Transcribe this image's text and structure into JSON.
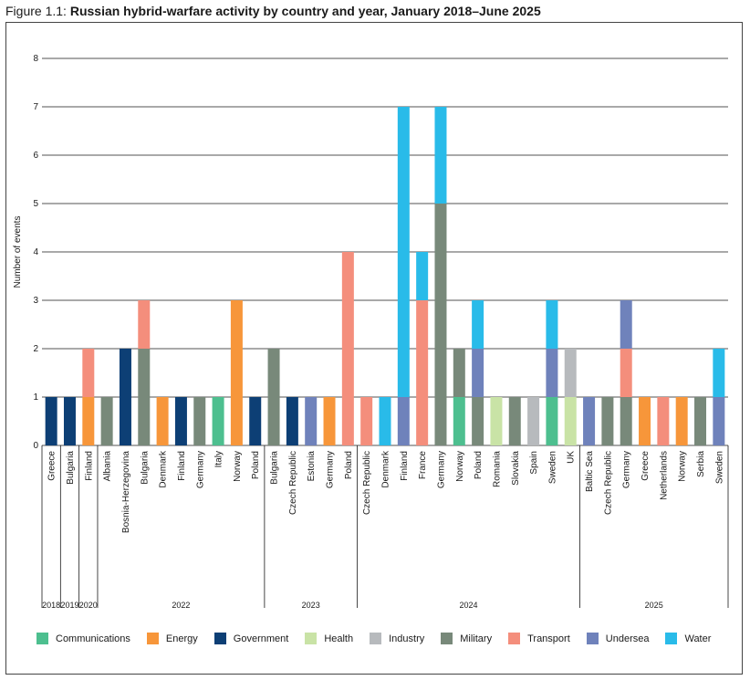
{
  "figure": {
    "number": "Figure 1.1:",
    "title": "Russian hybrid-warfare activity by country and year, January 2018–June 2025"
  },
  "colors": {
    "Communications": "#4dbf8f",
    "Energy": "#f7963a",
    "Government": "#0d3f75",
    "Health": "#c9e3a6",
    "Industry": "#b7babd",
    "Military": "#78897a",
    "Transport": "#f48e7c",
    "Undersea": "#6f82bb",
    "Water": "#29bbe9"
  },
  "chart_data": {
    "type": "bar",
    "stacked": true,
    "title": "Russian hybrid-warfare activity by country and year, January 2018–June 2025",
    "xlabel": "",
    "ylabel": "Number of events",
    "ylim": [
      0,
      8
    ],
    "yticks": [
      0,
      1,
      2,
      3,
      4,
      5,
      6,
      7,
      8
    ],
    "grid": "horizontal",
    "legend_position": "bottom",
    "legend": [
      "Communications",
      "Energy",
      "Government",
      "Health",
      "Industry",
      "Military",
      "Transport",
      "Undersea",
      "Water"
    ],
    "years": [
      {
        "label": "2018",
        "count": 1
      },
      {
        "label": "2019",
        "count": 1
      },
      {
        "label": "2020",
        "count": 1
      },
      {
        "label": "2022",
        "count": 9
      },
      {
        "label": "2023",
        "count": 5
      },
      {
        "label": "2024",
        "count": 12
      },
      {
        "label": "2025",
        "count": 8
      }
    ],
    "bars": [
      {
        "country": "Greece",
        "year": "2018",
        "segments": [
          {
            "cat": "Government",
            "v": 1
          }
        ]
      },
      {
        "country": "Bulgaria",
        "year": "2019",
        "segments": [
          {
            "cat": "Government",
            "v": 1
          }
        ]
      },
      {
        "country": "Finland",
        "year": "2020",
        "segments": [
          {
            "cat": "Energy",
            "v": 1
          },
          {
            "cat": "Transport",
            "v": 1
          }
        ]
      },
      {
        "country": "Albania",
        "year": "2022",
        "segments": [
          {
            "cat": "Military",
            "v": 1
          }
        ]
      },
      {
        "country": "Bosnia-Herzegovina",
        "year": "2022",
        "segments": [
          {
            "cat": "Government",
            "v": 2
          }
        ]
      },
      {
        "country": "Bulgaria",
        "year": "2022",
        "segments": [
          {
            "cat": "Military",
            "v": 2
          },
          {
            "cat": "Transport",
            "v": 1
          }
        ]
      },
      {
        "country": "Denmark",
        "year": "2022",
        "segments": [
          {
            "cat": "Energy",
            "v": 1
          }
        ]
      },
      {
        "country": "Finland",
        "year": "2022",
        "segments": [
          {
            "cat": "Government",
            "v": 1
          }
        ]
      },
      {
        "country": "Germany",
        "year": "2022",
        "segments": [
          {
            "cat": "Military",
            "v": 1
          }
        ]
      },
      {
        "country": "Italy",
        "year": "2022",
        "segments": [
          {
            "cat": "Communications",
            "v": 1
          }
        ]
      },
      {
        "country": "Norway",
        "year": "2022",
        "segments": [
          {
            "cat": "Energy",
            "v": 3
          }
        ]
      },
      {
        "country": "Poland",
        "year": "2022",
        "segments": [
          {
            "cat": "Government",
            "v": 1
          }
        ]
      },
      {
        "country": "Bulgaria",
        "year": "2023",
        "segments": [
          {
            "cat": "Military",
            "v": 2
          }
        ]
      },
      {
        "country": "Czech Republic",
        "year": "2023",
        "segments": [
          {
            "cat": "Government",
            "v": 1
          }
        ]
      },
      {
        "country": "Estonia",
        "year": "2023",
        "segments": [
          {
            "cat": "Undersea",
            "v": 1
          }
        ]
      },
      {
        "country": "Germany",
        "year": "2023",
        "segments": [
          {
            "cat": "Energy",
            "v": 1
          }
        ]
      },
      {
        "country": "Poland",
        "year": "2023",
        "segments": [
          {
            "cat": "Transport",
            "v": 4
          }
        ]
      },
      {
        "country": "Czech Republic",
        "year": "2024",
        "segments": [
          {
            "cat": "Transport",
            "v": 1
          }
        ]
      },
      {
        "country": "Denmark",
        "year": "2024",
        "segments": [
          {
            "cat": "Water",
            "v": 1
          }
        ]
      },
      {
        "country": "Finland",
        "year": "2024",
        "segments": [
          {
            "cat": "Undersea",
            "v": 1
          },
          {
            "cat": "Water",
            "v": 6
          }
        ]
      },
      {
        "country": "France",
        "year": "2024",
        "segments": [
          {
            "cat": "Transport",
            "v": 3
          },
          {
            "cat": "Water",
            "v": 1
          }
        ]
      },
      {
        "country": "Germany",
        "year": "2024",
        "segments": [
          {
            "cat": "Military",
            "v": 5
          },
          {
            "cat": "Water",
            "v": 2
          }
        ]
      },
      {
        "country": "Norway",
        "year": "2024",
        "segments": [
          {
            "cat": "Communications",
            "v": 1
          },
          {
            "cat": "Military",
            "v": 1
          }
        ]
      },
      {
        "country": "Poland",
        "year": "2024",
        "segments": [
          {
            "cat": "Military",
            "v": 1
          },
          {
            "cat": "Undersea",
            "v": 1
          },
          {
            "cat": "Water",
            "v": 1
          }
        ]
      },
      {
        "country": "Romania",
        "year": "2024",
        "segments": [
          {
            "cat": "Health",
            "v": 1
          }
        ]
      },
      {
        "country": "Slovakia",
        "year": "2024",
        "segments": [
          {
            "cat": "Military",
            "v": 1
          }
        ]
      },
      {
        "country": "Spain",
        "year": "2024",
        "segments": [
          {
            "cat": "Industry",
            "v": 1
          }
        ]
      },
      {
        "country": "Sweden",
        "year": "2024",
        "segments": [
          {
            "cat": "Communications",
            "v": 1
          },
          {
            "cat": "Undersea",
            "v": 1
          },
          {
            "cat": "Water",
            "v": 1
          }
        ]
      },
      {
        "country": "UK",
        "year": "2024",
        "segments": [
          {
            "cat": "Health",
            "v": 1
          },
          {
            "cat": "Industry",
            "v": 1
          }
        ]
      },
      {
        "country": "Baltic Sea",
        "year": "2025",
        "segments": [
          {
            "cat": "Undersea",
            "v": 1
          }
        ]
      },
      {
        "country": "Czech Republic",
        "year": "2025",
        "segments": [
          {
            "cat": "Military",
            "v": 1
          }
        ]
      },
      {
        "country": "Germany",
        "year": "2025",
        "segments": [
          {
            "cat": "Military",
            "v": 1
          },
          {
            "cat": "Transport",
            "v": 1
          },
          {
            "cat": "Undersea",
            "v": 1
          }
        ]
      },
      {
        "country": "Greece",
        "year": "2025",
        "segments": [
          {
            "cat": "Energy",
            "v": 1
          }
        ]
      },
      {
        "country": "Netherlands",
        "year": "2025",
        "segments": [
          {
            "cat": "Transport",
            "v": 1
          }
        ]
      },
      {
        "country": "Norway",
        "year": "2025",
        "segments": [
          {
            "cat": "Energy",
            "v": 1
          }
        ]
      },
      {
        "country": "Serbia",
        "year": "2025",
        "segments": [
          {
            "cat": "Military",
            "v": 1
          }
        ]
      },
      {
        "country": "Sweden",
        "year": "2025",
        "segments": [
          {
            "cat": "Undersea",
            "v": 1
          },
          {
            "cat": "Water",
            "v": 1
          }
        ]
      }
    ]
  }
}
